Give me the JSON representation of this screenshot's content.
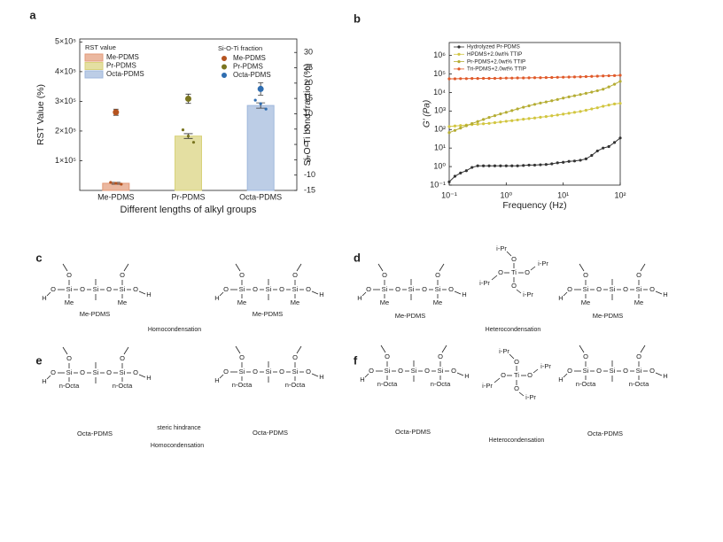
{
  "chart_data": [
    {
      "type": "bar",
      "panel_label": "a",
      "categories": [
        "Me-PDMS",
        "Pr-PDMS",
        "Octa-PDMS"
      ],
      "category_colors": [
        "#c0703a",
        "#9a922a",
        "#4a7cc0"
      ],
      "xlabel": "Different lengths of alkyl groups",
      "ylabel": "RST Value (%)",
      "y2label": "Si-O-Ti bond fraction (%)",
      "ylim": [
        0,
        510000
      ],
      "yticks": [
        {
          "value": 100000,
          "label": "1×10⁵"
        },
        {
          "value": 200000,
          "label": "2×10⁵"
        },
        {
          "value": 300000,
          "label": "3×10⁵"
        },
        {
          "value": 400000,
          "label": "4×10⁵"
        },
        {
          "value": 500000,
          "label": "5×10⁵"
        }
      ],
      "y2lim": [
        -15,
        34.4
      ],
      "y2ticks": [
        30,
        25,
        20,
        15,
        10,
        5,
        0,
        -5,
        -10,
        -15
      ],
      "bars": {
        "name": "RST value",
        "colors": [
          "#e39a78",
          "#d8d27a",
          "#9fb8dc"
        ],
        "values": [
          24000,
          183000,
          286000
        ],
        "errors": [
          3000,
          8000,
          9000
        ],
        "points": [
          [
            27000,
            24000,
            21000
          ],
          [
            204000,
            183000,
            162000
          ],
          [
            304000,
            292000,
            274000
          ]
        ]
      },
      "dots": {
        "name": "Si-O-Ti fraction",
        "axis": "y2",
        "colors": [
          "#b5531f",
          "#7a7520",
          "#2f6db0"
        ],
        "values": [
          10.5,
          14.9,
          18.1
        ],
        "errors": [
          1,
          1.5,
          2
        ]
      }
    },
    {
      "type": "line",
      "panel_label": "b",
      "xlabel": "Frequency (Hz)",
      "ylabel": "G' (Pa)",
      "xscale": "log",
      "yscale": "log",
      "xlim": [
        0.1,
        100
      ],
      "xticks": [
        {
          "value": 0.1,
          "label": "10⁻¹"
        },
        {
          "value": 1,
          "label": "10⁰"
        },
        {
          "value": 10,
          "label": "10¹"
        },
        {
          "value": 100,
          "label": "10²"
        }
      ],
      "ylim": [
        0.1,
        5000000
      ],
      "yticks": [
        {
          "value": 0.1,
          "label": "10⁻¹"
        },
        {
          "value": 1,
          "label": "10⁰"
        },
        {
          "value": 10,
          "label": "10¹"
        },
        {
          "value": 100,
          "label": "10²"
        },
        {
          "value": 1000,
          "label": "10³"
        },
        {
          "value": 10000,
          "label": "10⁴"
        },
        {
          "value": 100000,
          "label": "10⁵"
        },
        {
          "value": 1000000,
          "label": "10⁶"
        }
      ],
      "x": [
        0.1,
        0.126,
        0.158,
        0.2,
        0.251,
        0.316,
        0.398,
        0.501,
        0.631,
        0.794,
        1,
        1.26,
        1.58,
        2,
        2.51,
        3.16,
        3.98,
        5.01,
        6.31,
        7.94,
        10,
        12.6,
        15.8,
        20,
        25.1,
        31.6,
        39.8,
        50.1,
        63.1,
        79.4,
        100
      ],
      "series": [
        {
          "name": "Hydrolyzed Pr-PDMS",
          "color": "#333333",
          "values": [
            0.15,
            0.3,
            0.45,
            0.6,
            0.9,
            1.1,
            1.1,
            1.1,
            1.1,
            1.1,
            1.1,
            1.1,
            1.1,
            1.15,
            1.2,
            1.2,
            1.25,
            1.3,
            1.4,
            1.6,
            1.7,
            1.9,
            2,
            2.2,
            2.6,
            4,
            7,
            10,
            12,
            20,
            35
          ]
        },
        {
          "name": "HPDMS+2.0wt% TTIP",
          "color": "#d2c640",
          "values": [
            145,
            155,
            165,
            175,
            185,
            195,
            205,
            215,
            235,
            255,
            280,
            300,
            330,
            360,
            390,
            420,
            460,
            500,
            550,
            610,
            680,
            760,
            850,
            950,
            1100,
            1300,
            1500,
            1800,
            2100,
            2400,
            2600
          ]
        },
        {
          "name": "Pr-PDMS+2.0wt% TTIP",
          "color": "#b5ad34",
          "values": [
            68,
            90,
            120,
            160,
            210,
            270,
            350,
            450,
            560,
            700,
            850,
            1050,
            1300,
            1600,
            1900,
            2300,
            2700,
            3100,
            3600,
            4200,
            5000,
            5800,
            6700,
            7800,
            9000,
            10500,
            12500,
            15000,
            20000,
            28000,
            40000
          ]
        },
        {
          "name": "Tri-PDMS+2.0wt% TTIP",
          "color": "#e05a2a",
          "values": [
            55000,
            55000,
            56000,
            56000,
            57000,
            57000,
            58000,
            58000,
            58000,
            59000,
            60000,
            60000,
            61000,
            61000,
            62000,
            63000,
            63000,
            64000,
            65000,
            66000,
            67000,
            68000,
            69000,
            70000,
            72000,
            74000,
            76000,
            78000,
            80000,
            82000,
            85000
          ]
        }
      ]
    }
  ],
  "atoms": {
    "O": "O",
    "Si": "Si",
    "H": "H",
    "Ti": "Ti"
  },
  "panels": [
    {
      "label": "c",
      "substituent": "Me",
      "captions": [
        "Me-PDMS",
        "Me-PDMS"
      ],
      "notes": [
        {
          "text": "Homocondensation",
          "color": "#3a9ad9"
        }
      ]
    },
    {
      "label": "d",
      "substituent": "Me",
      "ligand": "i-Pr",
      "captions": [
        "Me-PDMS",
        "Me-PDMS"
      ],
      "notes": [
        {
          "text": "Heterocondensation",
          "color": "#3a9ad9"
        }
      ]
    },
    {
      "label": "e",
      "substituent": "n-Octa",
      "captions": [
        "Octa-PDMS",
        "Octa-PDMS"
      ],
      "notes": [
        {
          "text": "steric  hindrance",
          "color": "#e8261e"
        },
        {
          "text": "Homocondensation",
          "color": "#e8261e"
        }
      ]
    },
    {
      "label": "f",
      "substituent": "n-Octa",
      "ligand": "i-Pr",
      "captions": [
        "Octa-PDMS",
        "Octa-PDMS"
      ],
      "notes": [
        {
          "text": "Heterocondensation",
          "color": "#3a9ad9"
        }
      ]
    }
  ]
}
